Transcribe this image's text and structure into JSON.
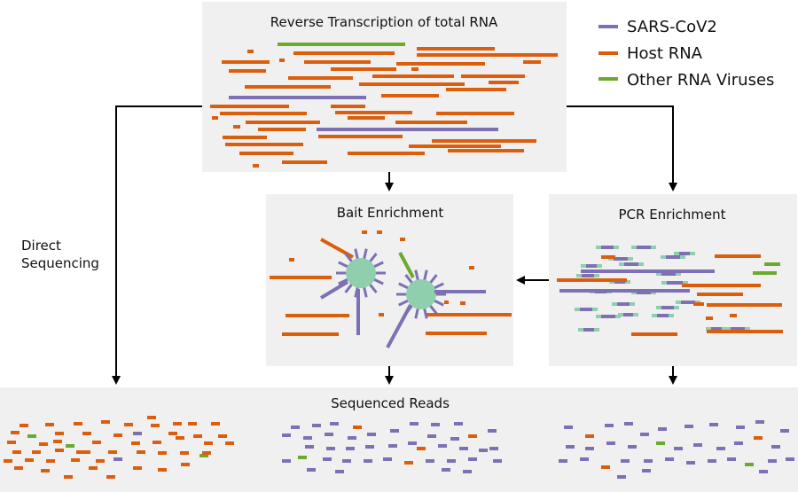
{
  "colors": {
    "sars_cov2": "#7d70b3",
    "host_rna": "#db5e0c",
    "other_rna": "#6aab2e",
    "bait_particle": "#8fcfae",
    "panel_background": "#f0f0f0",
    "arrow": "#000000"
  },
  "panels": {
    "reverse_transcription": {
      "title": "Reverse Transcription of total RNA"
    },
    "bait_enrichment": {
      "title": "Bait Enrichment"
    },
    "pcr_enrichment": {
      "title": "PCR Enrichment"
    },
    "sequenced_reads": {
      "title": "Sequenced Reads"
    }
  },
  "legend": {
    "sars_cov2": "SARS-CoV2",
    "host_rna": "Host RNA",
    "other_rna": "Other RNA Viruses"
  },
  "labels": {
    "direct_line1": "Direct",
    "direct_line2": "Sequencing"
  }
}
